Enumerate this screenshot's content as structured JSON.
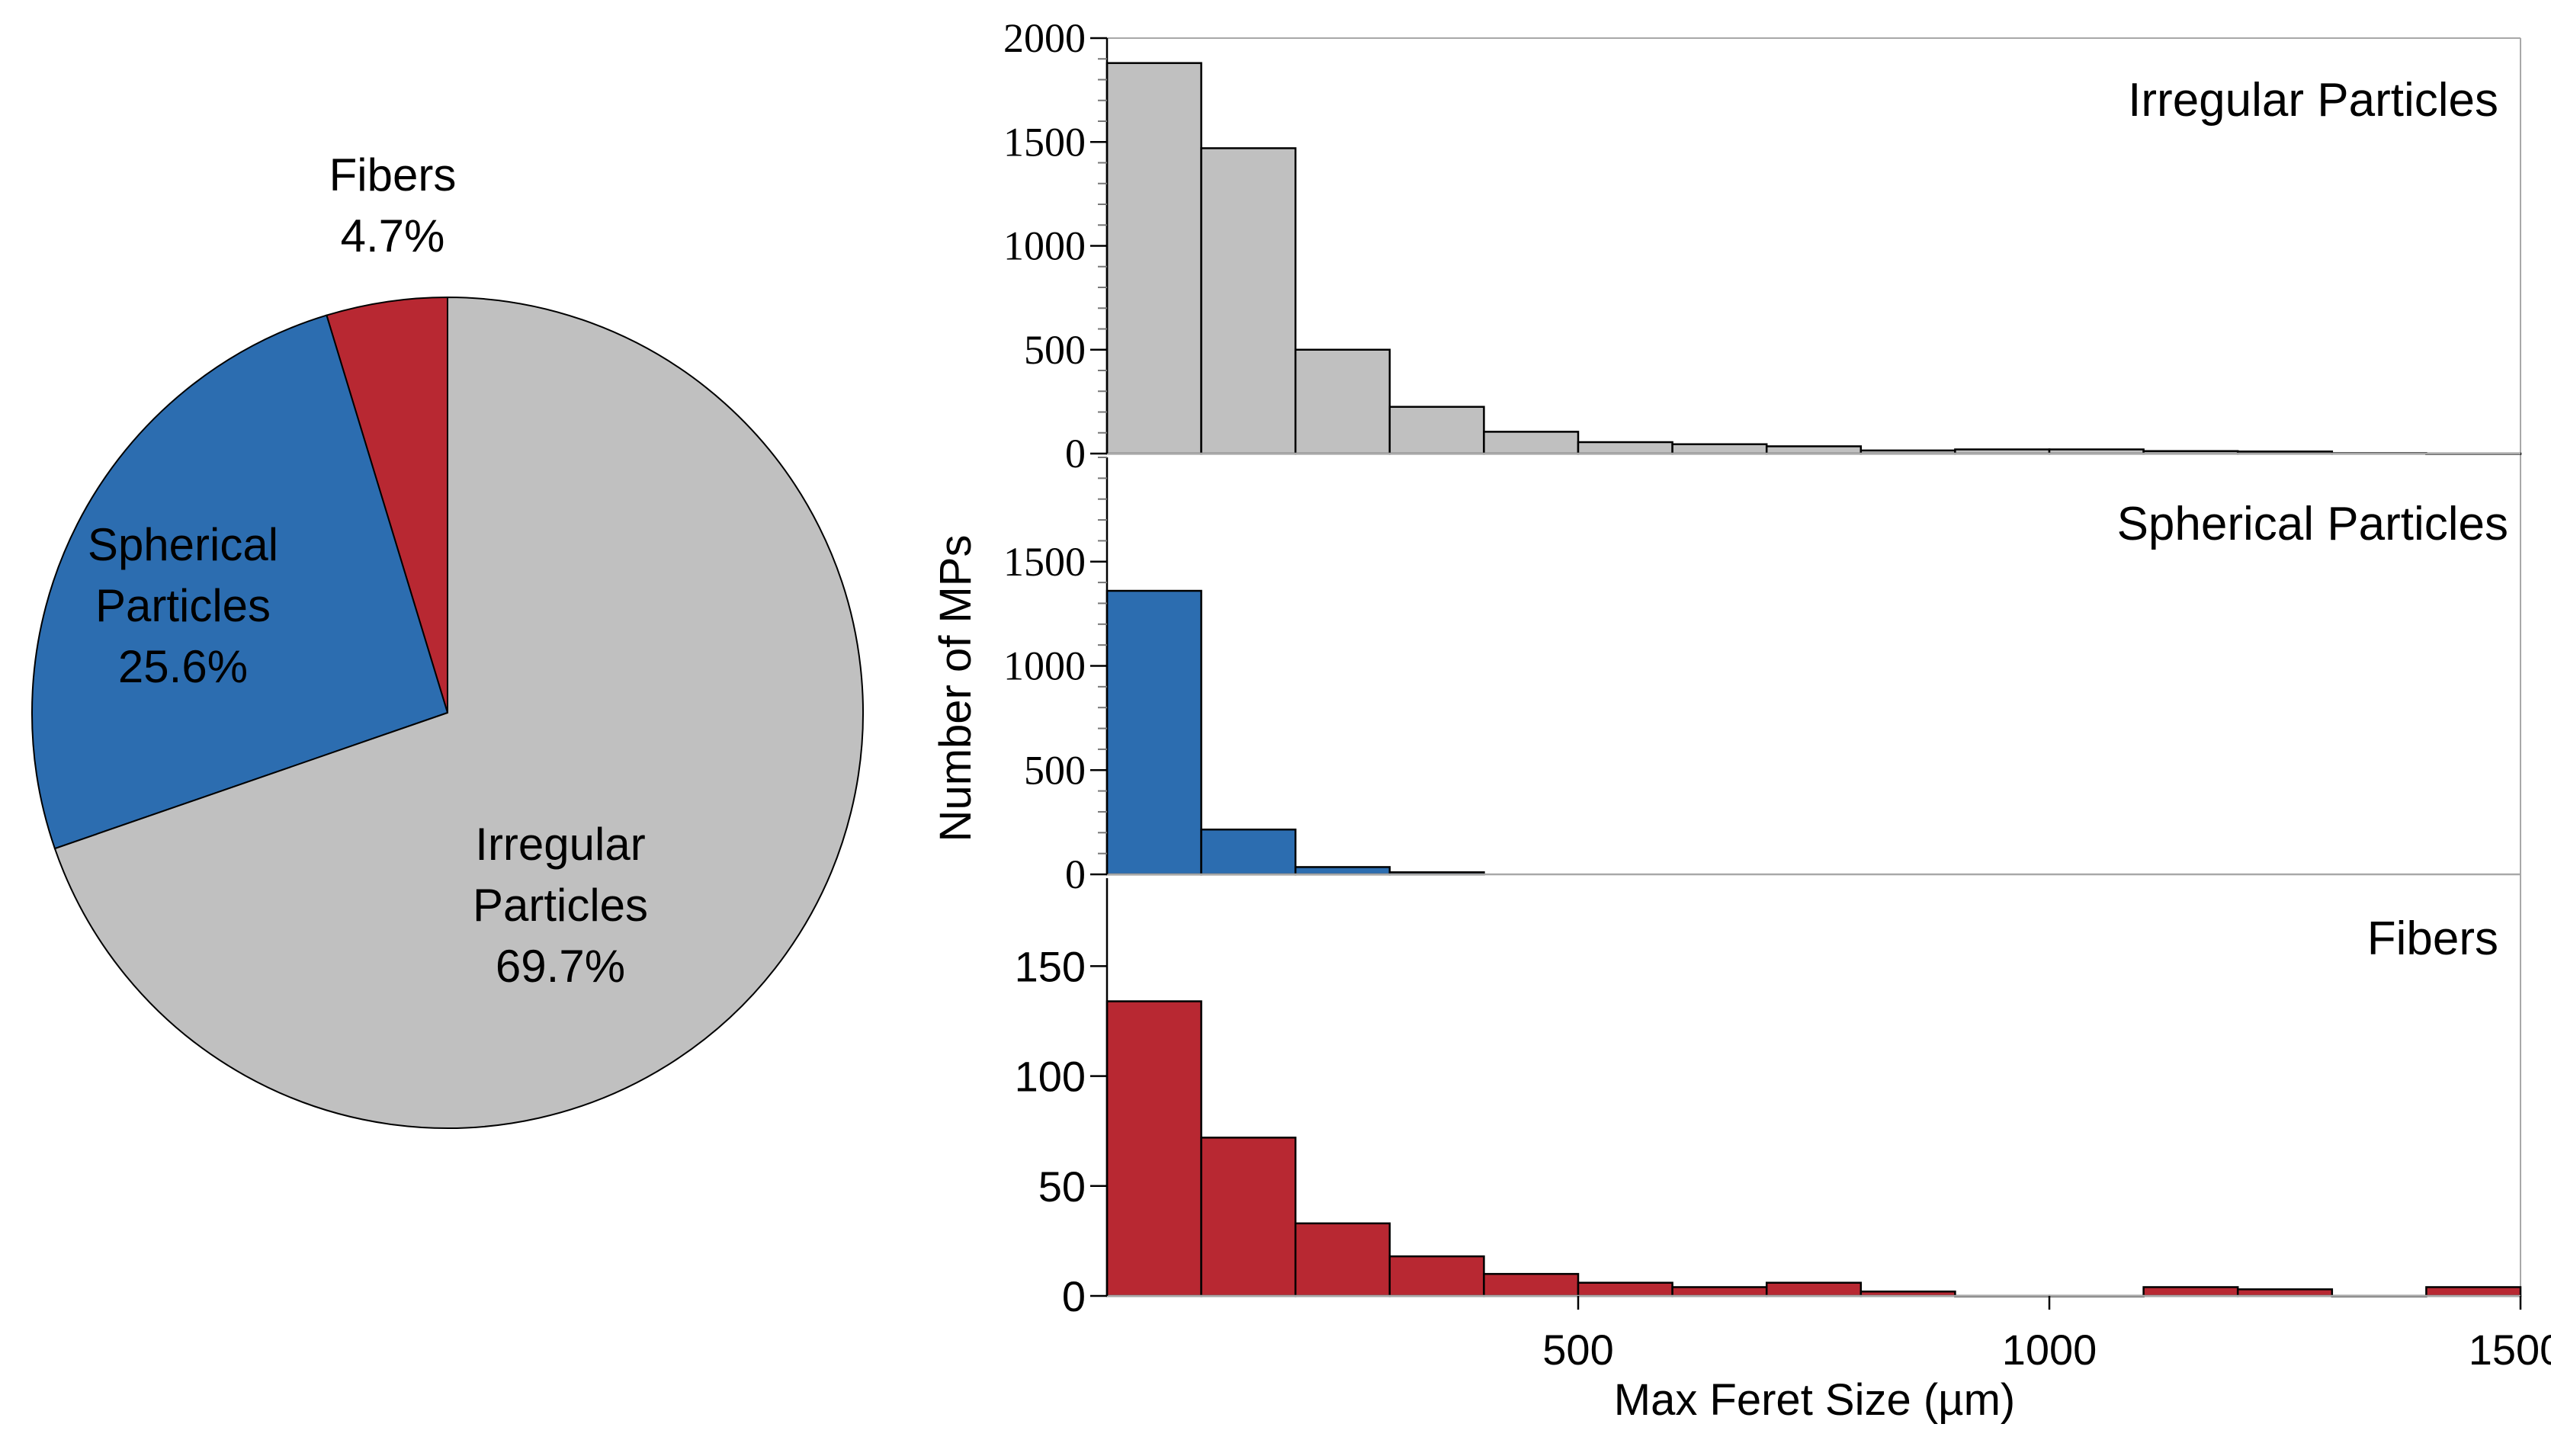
{
  "colors": {
    "irregular": "#c0c0c0",
    "spherical": "#2c6db0",
    "fibers": "#b82832",
    "axis": "#000000",
    "frame": "#a8a8a8"
  },
  "pie": {
    "slices": [
      {
        "key": "fibers",
        "line1": "Fibers",
        "line2": "",
        "pct_label": "4.7%",
        "value": 4.7
      },
      {
        "key": "spherical",
        "line1": "Spherical",
        "line2": "Particles",
        "pct_label": "25.6%",
        "value": 25.6
      },
      {
        "key": "irregular",
        "line1": "Irregular",
        "line2": "Particles",
        "pct_label": "69.7%",
        "value": 69.7
      }
    ]
  },
  "chart_data": [
    {
      "type": "pie",
      "categories": [
        "Fibers",
        "Spherical Particles",
        "Irregular Particles"
      ],
      "values": [
        4.7,
        25.6,
        69.7
      ],
      "labels": [
        "4.7%",
        "25.6%",
        "69.7%"
      ]
    },
    {
      "type": "bar",
      "title": "Irregular Particles",
      "bin_edges": [
        0,
        100,
        200,
        300,
        400,
        500,
        600,
        700,
        800,
        900,
        1000,
        1100,
        1200,
        1300,
        1400,
        1500
      ],
      "values": [
        1880,
        1470,
        500,
        225,
        105,
        55,
        45,
        35,
        15,
        20,
        20,
        12,
        10,
        2,
        0
      ],
      "ylim": [
        0,
        2000
      ],
      "yticks": [
        0,
        500,
        1000,
        1500,
        2000
      ],
      "tick_labels": [
        "0",
        "500",
        "1000",
        "1500",
        "2000"
      ]
    },
    {
      "type": "bar",
      "title": "Spherical Particles",
      "bin_edges": [
        0,
        100,
        200,
        300,
        400
      ],
      "values": [
        1360,
        215,
        35,
        10
      ],
      "ylim": [
        0,
        2000
      ],
      "yticks": [
        0,
        500,
        1000,
        1500
      ],
      "tick_labels": [
        "0",
        "500",
        "1000",
        "1500"
      ]
    },
    {
      "type": "bar",
      "title": "Fibers",
      "bin_edges": [
        0,
        100,
        200,
        300,
        400,
        500,
        600,
        700,
        800,
        900,
        1000,
        1100,
        1200,
        1300,
        1400,
        1500
      ],
      "values": [
        134,
        72,
        33,
        18,
        10,
        6,
        4,
        6,
        2,
        0,
        0,
        4,
        3,
        0,
        4
      ],
      "ylim": [
        0,
        190
      ],
      "yticks": [
        0,
        50,
        100,
        150
      ],
      "tick_labels": [
        "0",
        "50",
        "100",
        "150"
      ]
    }
  ],
  "axes": {
    "ylabel": "Number of MPs",
    "xlabel": "Max Feret Size (µm)",
    "xlim": [
      0,
      1500
    ],
    "xticks": [
      500,
      1000,
      1500
    ],
    "xtick_labels": [
      "500",
      "1000",
      "1500"
    ]
  }
}
